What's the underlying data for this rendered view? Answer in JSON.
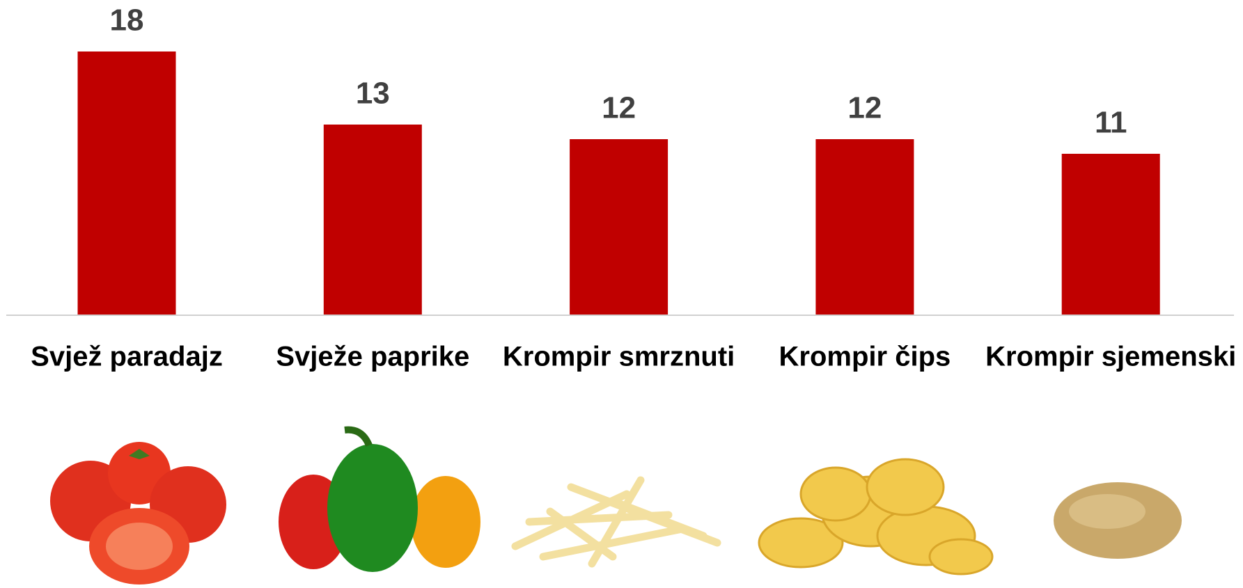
{
  "chart_data": {
    "type": "bar",
    "categories": [
      "Svjež paradajz",
      "Svježe paprike",
      "Krompir smrznuti",
      "Krompir čips",
      "Krompir sjemenski"
    ],
    "values": [
      18,
      13,
      12,
      12,
      11
    ],
    "color": "#c00000"
  }
}
